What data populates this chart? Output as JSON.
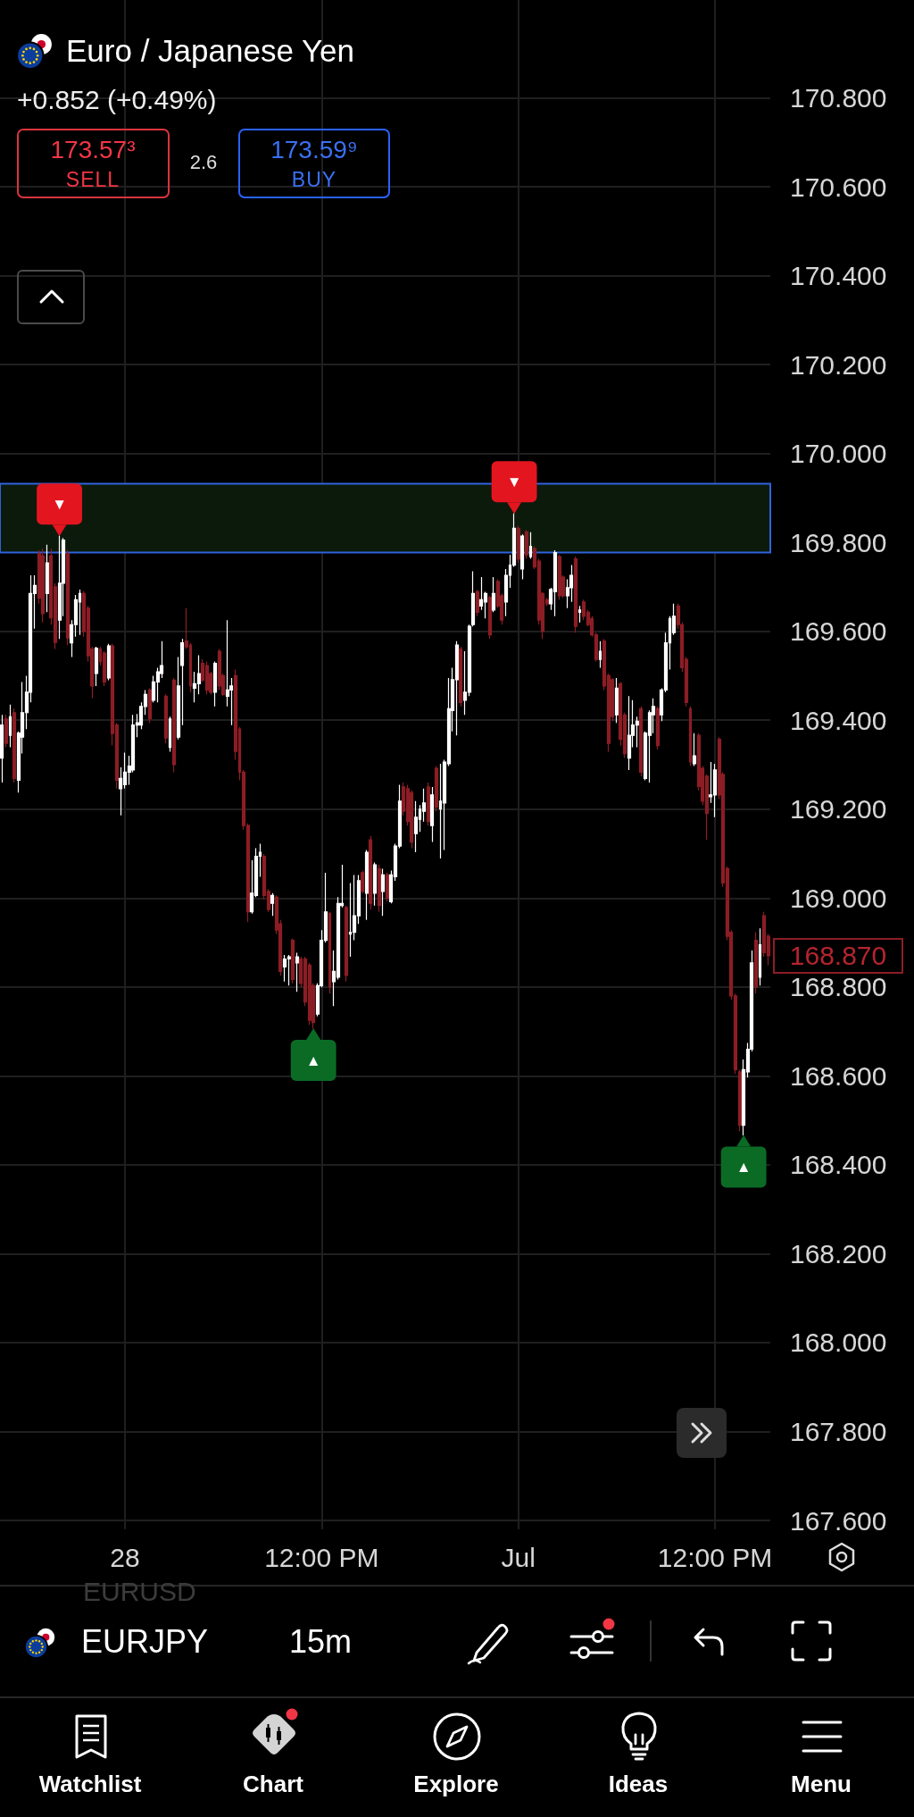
{
  "chart_data": {
    "type": "candlestick",
    "title": "Euro / Japanese Yen",
    "subtitle": "+0.852 (+0.49%)",
    "categories": [
      null,
      null,
      null,
      null,
      null,
      null,
      null,
      null,
      null,
      null,
      null,
      null,
      null,
      null,
      null,
      null,
      null,
      null,
      null,
      null,
      null,
      null,
      null,
      null,
      null,
      null,
      null,
      null,
      null,
      null,
      "28",
      null,
      null,
      null,
      null,
      null,
      null,
      null,
      null,
      null,
      null,
      null,
      null,
      null,
      null,
      null,
      null,
      null,
      null,
      null,
      null,
      null,
      null,
      null,
      null,
      null,
      null,
      null,
      null,
      null,
      null,
      null,
      null,
      null,
      null,
      null,
      null,
      null,
      null,
      null,
      null,
      null,
      null,
      null,
      null,
      null,
      null,
      null,
      "12:00 PM",
      null,
      null,
      null,
      null,
      null,
      null,
      null,
      null,
      null,
      null,
      null,
      null,
      null,
      null,
      null,
      null,
      null,
      null,
      null,
      null,
      null,
      null,
      null,
      null,
      null,
      null,
      null,
      null,
      null,
      null,
      null,
      null,
      null,
      null,
      null,
      null,
      null,
      null,
      null,
      null,
      null,
      null,
      null,
      null,
      null,
      null,
      null,
      "Jul",
      null,
      null,
      null,
      null,
      null,
      null,
      null,
      null,
      null,
      null,
      null,
      null,
      null,
      null,
      null,
      null,
      null,
      null,
      null,
      null,
      null,
      null,
      null,
      null,
      null,
      null,
      null,
      null,
      null,
      null,
      null,
      null,
      null,
      null,
      null,
      null,
      null,
      null,
      null,
      null,
      null,
      null,
      null,
      null,
      null,
      null,
      null,
      "12:00 PM",
      null,
      null,
      null,
      null,
      null,
      null,
      null,
      null,
      null,
      null,
      null,
      null,
      null
    ],
    "ohlc": [
      [
        169.315,
        169.412,
        169.26,
        169.389
      ],
      [
        169.403,
        169.412,
        169.339,
        169.348
      ],
      [
        169.366,
        169.435,
        169.339,
        169.408
      ],
      [
        169.417,
        169.426,
        169.26,
        169.269
      ],
      [
        169.265,
        169.375,
        169.237,
        169.371
      ],
      [
        169.362,
        169.486,
        169.325,
        169.417
      ],
      [
        169.417,
        169.5,
        169.38,
        169.463
      ],
      [
        169.463,
        169.726,
        169.44,
        169.685
      ],
      [
        169.685,
        169.726,
        169.606,
        169.703
      ],
      [
        169.775,
        169.782,
        169.662,
        169.675
      ],
      [
        169.77,
        169.786,
        169.62,
        169.64
      ],
      [
        169.685,
        169.795,
        169.643,
        169.754
      ],
      [
        169.77,
        169.786,
        169.615,
        169.63
      ],
      [
        169.7,
        169.708,
        169.56,
        169.575
      ],
      [
        169.625,
        169.815,
        169.583,
        169.708
      ],
      [
        169.708,
        169.81,
        169.634,
        169.805
      ],
      [
        169.775,
        169.783,
        169.569,
        169.585
      ],
      [
        169.574,
        169.625,
        169.542,
        169.615
      ],
      [
        169.615,
        169.682,
        169.588,
        169.671
      ],
      [
        169.666,
        169.694,
        169.592,
        169.685
      ],
      [
        169.685,
        169.691,
        169.588,
        169.6
      ],
      [
        169.652,
        169.657,
        169.532,
        169.545
      ],
      [
        169.56,
        169.565,
        169.449,
        169.477
      ],
      [
        169.505,
        169.565,
        169.477,
        169.562
      ],
      [
        169.56,
        169.565,
        169.523,
        169.532
      ],
      [
        169.551,
        169.555,
        169.477,
        169.486
      ],
      [
        169.495,
        169.572,
        169.49,
        169.567
      ],
      [
        169.567,
        169.572,
        169.343,
        169.37
      ],
      [
        169.389,
        169.394,
        169.246,
        169.265
      ],
      [
        169.246,
        169.294,
        169.186,
        169.269
      ],
      [
        169.255,
        169.327,
        169.246,
        169.283
      ],
      [
        169.283,
        169.32,
        169.255,
        169.297
      ],
      [
        169.288,
        169.412,
        169.283,
        169.389
      ],
      [
        169.389,
        169.414,
        169.362,
        169.394
      ],
      [
        169.389,
        169.44,
        169.38,
        169.431
      ],
      [
        169.431,
        169.468,
        169.412,
        169.458
      ],
      [
        169.468,
        169.472,
        169.394,
        169.403
      ],
      [
        169.445,
        169.5,
        169.44,
        169.486
      ],
      [
        169.486,
        169.518,
        169.44,
        169.509
      ],
      [
        169.505,
        169.578,
        169.495,
        169.523
      ],
      [
        169.454,
        169.458,
        169.348,
        169.36
      ],
      [
        169.339,
        169.408,
        169.329,
        169.403
      ],
      [
        169.49,
        169.495,
        169.283,
        169.3
      ],
      [
        169.362,
        169.542,
        169.357,
        169.477
      ],
      [
        169.523,
        169.583,
        169.389,
        169.574
      ],
      [
        169.578,
        169.652,
        169.56,
        169.565
      ],
      [
        169.569,
        169.574,
        169.463,
        169.477
      ],
      [
        169.472,
        169.509,
        169.44,
        169.482
      ],
      [
        169.482,
        169.546,
        169.458,
        169.505
      ],
      [
        169.528,
        169.537,
        169.486,
        169.49
      ],
      [
        169.523,
        169.532,
        169.458,
        169.468
      ],
      [
        169.505,
        169.509,
        169.458,
        169.463
      ],
      [
        169.463,
        169.532,
        169.431,
        169.528
      ],
      [
        169.555,
        169.56,
        169.468,
        169.477
      ],
      [
        169.5,
        169.505,
        169.454,
        169.458
      ],
      [
        169.454,
        169.625,
        169.431,
        169.468
      ],
      [
        169.468,
        169.495,
        169.389,
        169.477
      ],
      [
        169.5,
        169.514,
        169.311,
        169.33
      ],
      [
        169.38,
        169.385,
        169.265,
        169.283
      ],
      [
        169.283,
        169.288,
        169.154,
        169.163
      ],
      [
        169.163,
        169.168,
        168.946,
        168.969
      ],
      [
        168.969,
        169.085,
        168.965,
        169.011
      ],
      [
        169.006,
        169.112,
        169.002,
        169.094
      ],
      [
        169.094,
        169.122,
        169.048,
        169.103
      ],
      [
        169.094,
        169.099,
        168.997,
        169.006
      ],
      [
        169.015,
        169.02,
        168.969,
        168.974
      ],
      [
        168.988,
        169.011,
        168.96,
        169.006
      ],
      [
        169.002,
        169.006,
        168.919,
        168.928
      ],
      [
        168.942,
        168.951,
        168.826,
        168.835
      ],
      [
        168.845,
        168.872,
        168.812,
        168.863
      ],
      [
        168.863,
        168.872,
        168.803,
        168.868
      ],
      [
        168.905,
        168.909,
        168.808,
        168.817
      ],
      [
        168.854,
        168.877,
        168.789,
        168.868
      ],
      [
        168.863,
        168.868,
        168.799,
        168.808
      ],
      [
        168.863,
        168.868,
        168.757,
        168.766
      ],
      [
        168.849,
        168.854,
        168.715,
        168.725
      ],
      [
        168.803,
        168.808,
        168.706,
        168.72
      ],
      [
        168.739,
        168.808,
        168.734,
        168.803
      ],
      [
        168.803,
        168.928,
        168.799,
        168.905
      ],
      [
        168.905,
        169.057,
        168.9,
        168.969
      ],
      [
        168.965,
        168.969,
        168.785,
        168.8
      ],
      [
        168.812,
        168.882,
        168.757,
        168.835
      ],
      [
        168.822,
        169.002,
        168.817,
        168.988
      ],
      [
        168.983,
        169.075,
        168.979,
        168.988
      ],
      [
        168.979,
        168.983,
        168.812,
        168.826
      ],
      [
        168.919,
        169.034,
        168.868,
        168.923
      ],
      [
        168.923,
        169.052,
        168.905,
        168.96
      ],
      [
        168.96,
        169.052,
        168.942,
        169.039
      ],
      [
        169.057,
        169.062,
        169.011,
        169.015
      ],
      [
        169.011,
        169.108,
        168.951,
        169.103
      ],
      [
        169.131,
        169.14,
        168.974,
        168.988
      ],
      [
        169.011,
        169.08,
        168.983,
        169.075
      ],
      [
        169.066,
        169.075,
        168.969,
        168.983
      ],
      [
        169.015,
        169.066,
        168.96,
        169.052
      ],
      [
        169.052,
        169.057,
        168.992,
        169.0
      ],
      [
        168.992,
        169.062,
        168.988,
        169.052
      ],
      [
        169.048,
        169.122,
        169.039,
        169.117
      ],
      [
        169.117,
        169.255,
        169.112,
        169.218
      ],
      [
        169.25,
        169.26,
        169.186,
        169.195
      ],
      [
        169.246,
        169.255,
        169.163,
        169.172
      ],
      [
        169.237,
        169.242,
        169.112,
        169.126
      ],
      [
        169.145,
        169.218,
        169.103,
        169.182
      ],
      [
        169.177,
        169.209,
        169.149,
        169.2
      ],
      [
        169.195,
        169.246,
        169.172,
        169.214
      ],
      [
        169.25,
        169.26,
        169.163,
        169.172
      ],
      [
        169.163,
        169.25,
        169.126,
        169.232
      ],
      [
        169.292,
        169.297,
        169.195,
        169.205
      ],
      [
        169.2,
        169.302,
        169.089,
        169.218
      ],
      [
        169.214,
        169.311,
        169.108,
        169.306
      ],
      [
        169.302,
        169.495,
        169.297,
        169.426
      ],
      [
        169.422,
        169.518,
        169.375,
        169.491
      ],
      [
        169.491,
        169.578,
        169.366,
        169.569
      ],
      [
        169.56,
        169.565,
        169.431,
        169.44
      ],
      [
        169.445,
        169.555,
        169.412,
        169.463
      ],
      [
        169.463,
        169.615,
        169.454,
        169.611
      ],
      [
        169.615,
        169.735,
        169.611,
        169.685
      ],
      [
        169.689,
        169.694,
        169.634,
        169.643
      ],
      [
        169.657,
        169.722,
        169.648,
        169.671
      ],
      [
        169.666,
        169.689,
        169.629,
        169.685
      ],
      [
        169.676,
        169.68,
        169.583,
        169.592
      ],
      [
        169.648,
        169.722,
        169.643,
        169.685
      ],
      [
        169.712,
        169.717,
        169.652,
        169.657
      ],
      [
        169.68,
        169.685,
        169.615,
        169.625
      ],
      [
        169.666,
        169.74,
        169.634,
        169.726
      ],
      [
        169.726,
        169.772,
        169.698,
        169.749
      ],
      [
        169.749,
        169.865,
        169.745,
        169.832
      ],
      [
        169.832,
        169.837,
        169.754,
        169.763
      ],
      [
        169.74,
        169.818,
        169.717,
        169.814
      ],
      [
        169.823,
        169.828,
        169.763,
        169.772
      ],
      [
        169.768,
        169.823,
        169.763,
        169.791
      ],
      [
        169.786,
        169.791,
        169.74,
        169.745
      ],
      [
        169.758,
        169.763,
        169.615,
        169.625
      ],
      [
        169.685,
        169.689,
        169.583,
        169.6
      ],
      [
        169.671,
        169.675,
        169.657,
        169.662
      ],
      [
        169.662,
        169.698,
        169.648,
        169.694
      ],
      [
        169.689,
        169.782,
        169.634,
        169.777
      ],
      [
        169.768,
        169.772,
        169.671,
        169.68
      ],
      [
        169.722,
        169.726,
        169.675,
        169.68
      ],
      [
        169.68,
        169.717,
        169.652,
        169.698
      ],
      [
        169.698,
        169.749,
        169.666,
        169.726
      ],
      [
        169.763,
        169.768,
        169.597,
        169.611
      ],
      [
        169.643,
        169.657,
        169.62,
        169.648
      ],
      [
        169.666,
        169.671,
        169.625,
        169.634
      ],
      [
        169.643,
        169.648,
        169.611,
        169.615
      ],
      [
        169.629,
        169.634,
        169.588,
        169.592
      ],
      [
        169.592,
        169.597,
        169.532,
        169.537
      ],
      [
        169.537,
        169.578,
        169.518,
        169.555
      ],
      [
        169.578,
        169.583,
        169.468,
        169.477
      ],
      [
        169.5,
        169.505,
        169.329,
        169.348
      ],
      [
        169.491,
        169.495,
        169.398,
        169.408
      ],
      [
        169.412,
        169.495,
        169.394,
        169.472
      ],
      [
        169.482,
        169.486,
        169.343,
        169.357
      ],
      [
        169.412,
        169.417,
        169.315,
        169.325
      ],
      [
        169.315,
        169.454,
        169.288,
        169.366
      ],
      [
        169.366,
        169.445,
        169.339,
        169.389
      ],
      [
        169.389,
        169.408,
        169.339,
        169.398
      ],
      [
        169.426,
        169.431,
        169.274,
        169.283
      ],
      [
        169.269,
        169.375,
        169.265,
        169.371
      ],
      [
        169.366,
        169.422,
        169.26,
        169.417
      ],
      [
        169.412,
        169.449,
        169.371,
        169.431
      ],
      [
        169.426,
        169.431,
        169.334,
        169.343
      ],
      [
        169.412,
        169.472,
        169.398,
        169.468
      ],
      [
        169.468,
        169.597,
        169.463,
        169.574
      ],
      [
        169.574,
        169.634,
        169.514,
        169.629
      ],
      [
        169.597,
        169.662,
        169.592,
        169.634
      ],
      [
        169.657,
        169.662,
        169.606,
        169.615
      ],
      [
        169.615,
        169.62,
        169.509,
        169.518
      ],
      [
        169.537,
        169.542,
        169.431,
        169.44
      ],
      [
        169.426,
        169.431,
        169.297,
        169.306
      ],
      [
        169.302,
        169.371,
        169.297,
        169.32
      ],
      [
        169.366,
        169.371,
        169.242,
        169.251
      ],
      [
        169.292,
        169.297,
        169.209,
        169.218
      ],
      [
        169.274,
        169.278,
        169.131,
        169.19
      ],
      [
        169.228,
        169.306,
        169.214,
        169.232
      ],
      [
        169.232,
        169.302,
        169.182,
        169.288
      ],
      [
        169.357,
        169.362,
        169.223,
        169.232
      ],
      [
        169.278,
        169.283,
        169.025,
        169.034
      ],
      [
        169.066,
        169.071,
        168.905,
        168.914
      ],
      [
        168.923,
        168.928,
        168.771,
        168.78
      ],
      [
        168.78,
        168.785,
        168.605,
        168.614
      ],
      [
        168.609,
        168.614,
        168.475,
        168.489
      ],
      [
        168.489,
        168.637,
        168.466,
        168.614
      ],
      [
        168.609,
        168.674,
        168.596,
        168.66
      ],
      [
        168.66,
        168.882,
        168.655,
        168.854
      ],
      [
        168.905,
        168.923,
        168.785,
        168.8
      ],
      [
        168.822,
        168.932,
        168.803,
        168.895
      ],
      [
        168.96,
        168.969,
        168.868,
        168.877
      ],
      [
        168.914,
        168.919,
        168.849,
        168.87
      ]
    ],
    "colors": [
      "#ffffff",
      "#8c1d25",
      "#ffffff",
      "#8c1d25",
      "#ffffff",
      "#ffffff",
      "#ffffff",
      "#ffffff",
      "#ffffff",
      "#8c1d25",
      "#8c1d25",
      "#ffffff",
      "#8c1d25",
      "#8c1d25",
      "#ffffff",
      "#ffffff",
      "#8c1d25",
      "#ffffff",
      "#ffffff",
      "#ffffff",
      "#8c1d25",
      "#8c1d25",
      "#8c1d25",
      "#ffffff",
      "#8c1d25",
      "#8c1d25",
      "#ffffff",
      "#8c1d25",
      "#8c1d25",
      "#ffffff",
      "#ffffff",
      "#ffffff",
      "#ffffff",
      "#ffffff",
      "#ffffff",
      "#ffffff",
      "#8c1d25",
      "#ffffff",
      "#ffffff",
      "#ffffff",
      "#8c1d25",
      "#ffffff",
      "#8c1d25",
      "#ffffff",
      "#ffffff",
      "#8c1d25",
      "#8c1d25",
      "#ffffff",
      "#ffffff",
      "#8c1d25",
      "#8c1d25",
      "#8c1d25",
      "#ffffff",
      "#8c1d25",
      "#8c1d25",
      "#ffffff",
      "#ffffff",
      "#8c1d25",
      "#8c1d25",
      "#8c1d25",
      "#8c1d25",
      "#ffffff",
      "#ffffff",
      "#ffffff",
      "#8c1d25",
      "#8c1d25",
      "#ffffff",
      "#8c1d25",
      "#8c1d25",
      "#ffffff",
      "#ffffff",
      "#8c1d25",
      "#ffffff",
      "#8c1d25",
      "#8c1d25",
      "#8c1d25",
      "#8c1d25",
      "#ffffff",
      "#ffffff",
      "#ffffff",
      "#8c1d25",
      "#ffffff",
      "#ffffff",
      "#ffffff",
      "#8c1d25",
      "#ffffff",
      "#ffffff",
      "#ffffff",
      "#8c1d25",
      "#ffffff",
      "#8c1d25",
      "#ffffff",
      "#8c1d25",
      "#ffffff",
      "#8c1d25",
      "#ffffff",
      "#ffffff",
      "#ffffff",
      "#8c1d25",
      "#8c1d25",
      "#8c1d25",
      "#ffffff",
      "#ffffff",
      "#ffffff",
      "#8c1d25",
      "#ffffff",
      "#8c1d25",
      "#ffffff",
      "#ffffff",
      "#ffffff",
      "#ffffff",
      "#ffffff",
      "#8c1d25",
      "#ffffff",
      "#ffffff",
      "#ffffff",
      "#8c1d25",
      "#ffffff",
      "#ffffff",
      "#8c1d25",
      "#ffffff",
      "#8c1d25",
      "#8c1d25",
      "#ffffff",
      "#ffffff",
      "#ffffff",
      "#8c1d25",
      "#ffffff",
      "#8c1d25",
      "#ffffff",
      "#8c1d25",
      "#8c1d25",
      "#8c1d25",
      "#8c1d25",
      "#ffffff",
      "#ffffff",
      "#8c1d25",
      "#8c1d25",
      "#ffffff",
      "#ffffff",
      "#8c1d25",
      "#ffffff",
      "#8c1d25",
      "#8c1d25",
      "#8c1d25",
      "#8c1d25",
      "#ffffff",
      "#8c1d25",
      "#8c1d25",
      "#8c1d25",
      "#ffffff",
      "#8c1d25",
      "#8c1d25",
      "#ffffff",
      "#ffffff",
      "#ffffff",
      "#8c1d25",
      "#ffffff",
      "#ffffff",
      "#ffffff",
      "#8c1d25",
      "#ffffff",
      "#ffffff",
      "#ffffff",
      "#ffffff",
      "#8c1d25",
      "#8c1d25",
      "#8c1d25",
      "#8c1d25",
      "#ffffff",
      "#8c1d25",
      "#8c1d25",
      "#8c1d25",
      "#ffffff",
      "#ffffff",
      "#8c1d25",
      "#8c1d25",
      "#8c1d25",
      "#8c1d25",
      "#8c1d25",
      "#8c1d25",
      "#ffffff",
      "#ffffff",
      "#ffffff",
      "#8c1d25",
      "#ffffff",
      "#8c1d25",
      "#8c1d25"
    ],
    "series": [
      {
        "type": "scatter",
        "color": "#e3151f",
        "values": [
          null,
          null,
          null,
          null,
          null,
          null,
          null,
          null,
          null,
          null,
          null,
          null,
          null,
          null,
          169.827,
          null,
          null,
          null,
          null,
          null,
          null,
          null,
          null,
          null,
          null,
          null,
          null,
          null,
          null,
          null,
          null,
          null,
          null,
          null,
          null,
          null,
          null,
          null,
          null,
          null,
          null,
          null,
          null,
          null,
          null,
          null,
          null,
          null,
          null,
          null,
          null,
          null,
          null,
          null,
          null,
          null,
          null,
          null,
          null,
          null,
          null,
          null,
          null,
          null,
          null,
          null,
          null,
          null,
          null,
          null,
          null,
          null,
          null,
          null,
          null,
          null,
          null,
          null,
          null,
          null,
          null,
          null,
          null,
          null,
          null,
          null,
          null,
          null,
          null,
          null,
          null,
          null,
          null,
          null,
          null,
          null,
          null,
          null,
          null,
          null,
          null,
          null,
          null,
          null,
          null,
          null,
          null,
          null,
          null,
          null,
          null,
          null,
          null,
          null,
          null,
          null,
          null,
          null,
          null,
          null,
          null,
          null,
          null,
          null,
          null,
          169.877,
          null,
          null,
          null,
          null,
          null,
          null,
          null,
          null,
          null,
          null,
          null,
          null,
          null,
          null,
          null,
          null,
          null,
          null,
          null,
          null,
          null,
          null,
          null,
          null,
          null,
          null,
          null,
          null,
          null,
          null,
          null,
          null,
          null,
          null,
          null,
          null,
          null,
          null,
          null,
          null,
          null,
          null,
          null,
          null,
          null,
          null,
          null,
          null,
          null,
          null,
          null,
          null,
          null,
          null,
          null,
          null,
          null,
          null,
          null,
          null,
          null,
          null
        ],
        "value_labels": [
          null,
          null,
          null,
          null,
          null,
          null,
          null,
          null,
          null,
          null,
          null,
          null,
          null,
          null,
          "▼",
          null,
          null,
          null,
          null,
          null,
          null,
          null,
          null,
          null,
          null,
          null,
          null,
          null,
          null,
          null,
          null,
          null,
          null,
          null,
          null,
          null,
          null,
          null,
          null,
          null,
          null,
          null,
          null,
          null,
          null,
          null,
          null,
          null,
          null,
          null,
          null,
          null,
          null,
          null,
          null,
          null,
          null,
          null,
          null,
          null,
          null,
          null,
          null,
          null,
          null,
          null,
          null,
          null,
          null,
          null,
          null,
          null,
          null,
          null,
          null,
          null,
          null,
          null,
          null,
          null,
          null,
          null,
          null,
          null,
          null,
          null,
          null,
          null,
          null,
          null,
          null,
          null,
          null,
          null,
          null,
          null,
          null,
          null,
          null,
          null,
          null,
          null,
          null,
          null,
          null,
          null,
          null,
          null,
          null,
          null,
          null,
          null,
          null,
          null,
          null,
          null,
          null,
          null,
          null,
          null,
          null,
          null,
          null,
          null,
          null,
          "▼",
          null,
          null,
          null,
          null,
          null,
          null,
          null,
          null,
          null,
          null,
          null,
          null,
          null,
          null,
          null,
          null,
          null,
          null,
          null,
          null,
          null,
          null,
          null,
          null,
          null,
          null,
          null,
          null,
          null,
          null,
          null,
          null,
          null,
          null,
          null,
          null,
          null,
          null,
          null,
          null,
          null,
          null,
          null,
          null,
          null,
          null,
          null,
          null,
          null,
          null,
          null,
          null,
          null,
          null,
          null,
          null,
          null,
          null,
          null,
          null,
          null,
          null
        ]
      },
      {
        "type": "scatter",
        "color": "#0b6b25",
        "values": [
          null,
          null,
          null,
          null,
          null,
          null,
          null,
          null,
          null,
          null,
          null,
          null,
          null,
          null,
          null,
          null,
          null,
          null,
          null,
          null,
          null,
          null,
          null,
          null,
          null,
          null,
          null,
          null,
          null,
          null,
          null,
          null,
          null,
          null,
          null,
          null,
          null,
          null,
          null,
          null,
          null,
          null,
          null,
          null,
          null,
          null,
          null,
          null,
          null,
          null,
          null,
          null,
          null,
          null,
          null,
          null,
          null,
          null,
          null,
          null,
          null,
          null,
          null,
          null,
          null,
          null,
          null,
          null,
          null,
          null,
          null,
          null,
          null,
          null,
          null,
          null,
          168.694,
          null,
          null,
          null,
          null,
          null,
          null,
          null,
          null,
          null,
          null,
          null,
          null,
          null,
          null,
          null,
          null,
          null,
          null,
          null,
          null,
          null,
          null,
          null,
          null,
          null,
          null,
          null,
          null,
          null,
          null,
          null,
          null,
          null,
          null,
          null,
          null,
          null,
          null,
          null,
          null,
          null,
          null,
          null,
          null,
          null,
          null,
          null,
          null,
          null,
          null,
          null,
          null,
          null,
          null,
          null,
          null,
          null,
          null,
          null,
          null,
          null,
          null,
          null,
          null,
          null,
          null,
          null,
          null,
          null,
          null,
          null,
          null,
          null,
          null,
          null,
          null,
          null,
          null,
          null,
          null,
          null,
          null,
          null,
          null,
          null,
          null,
          null,
          null,
          null,
          null,
          null,
          null,
          null,
          null,
          null,
          null,
          null,
          null,
          null,
          null,
          null,
          null,
          null,
          null,
          168.454,
          null,
          null,
          null,
          null,
          null,
          null
        ],
        "value_labels": [
          null,
          null,
          null,
          null,
          null,
          null,
          null,
          null,
          null,
          null,
          null,
          null,
          null,
          null,
          null,
          null,
          null,
          null,
          null,
          null,
          null,
          null,
          null,
          null,
          null,
          null,
          null,
          null,
          null,
          null,
          null,
          null,
          null,
          null,
          null,
          null,
          null,
          null,
          null,
          null,
          null,
          null,
          null,
          null,
          null,
          null,
          null,
          null,
          null,
          null,
          null,
          null,
          null,
          null,
          null,
          null,
          null,
          null,
          null,
          null,
          null,
          null,
          null,
          null,
          null,
          null,
          null,
          null,
          null,
          null,
          null,
          null,
          null,
          null,
          null,
          null,
          "▲",
          null,
          null,
          null,
          null,
          null,
          null,
          null,
          null,
          null,
          null,
          null,
          null,
          null,
          null,
          null,
          null,
          null,
          null,
          null,
          null,
          null,
          null,
          null,
          null,
          null,
          null,
          null,
          null,
          null,
          null,
          null,
          null,
          null,
          null,
          null,
          null,
          null,
          null,
          null,
          null,
          null,
          null,
          null,
          null,
          null,
          null,
          null,
          null,
          null,
          null,
          null,
          null,
          null,
          null,
          null,
          null,
          null,
          null,
          null,
          null,
          null,
          null,
          null,
          null,
          null,
          null,
          null,
          null,
          null,
          null,
          null,
          null,
          null,
          null,
          null,
          null,
          null,
          null,
          null,
          null,
          null,
          null,
          null,
          null,
          null,
          null,
          null,
          null,
          null,
          null,
          null,
          null,
          null,
          null,
          null,
          null,
          null,
          null,
          null,
          null,
          null,
          null,
          null,
          null,
          "▲",
          null,
          null,
          null,
          null,
          null,
          null
        ]
      }
    ],
    "marker": "triangle",
    "bands": [
      {
        "axis": "y",
        "from": 169.777,
        "to": 169.932,
        "color": "#0c1a0c"
      }
    ],
    "ylim": [
      167.58,
      171.02
    ],
    "yticks": [
      {
        "value": 167.6,
        "label": "167.600"
      },
      {
        "value": 167.8,
        "label": "167.800"
      },
      {
        "value": 168,
        "label": "168.000"
      },
      {
        "value": 168.2,
        "label": "168.200"
      },
      {
        "value": 168.4,
        "label": "168.400"
      },
      {
        "value": 168.6,
        "label": "168.600"
      },
      {
        "value": 168.8,
        "label": "168.800"
      },
      {
        "value": 169,
        "label": "169.000"
      },
      {
        "value": 169.2,
        "label": "169.200"
      },
      {
        "value": 169.4,
        "label": "169.400"
      },
      {
        "value": 169.6,
        "label": "169.600"
      },
      {
        "value": 169.8,
        "label": "169.800"
      },
      {
        "value": 170,
        "label": "170.000"
      },
      {
        "value": 170.2,
        "label": "170.200"
      },
      {
        "value": 170.4,
        "label": "170.400"
      },
      {
        "value": 170.6,
        "label": "170.600"
      },
      {
        "value": 170.8,
        "label": "170.800"
      }
    ],
    "grid": true,
    "annotations": [
      "173.57³",
      "SELL",
      "2.6",
      "173.59⁹",
      "BUY",
      "168.870",
      "EURUSD",
      "EURJPY",
      "15m",
      "Watchlist",
      "Chart",
      "Explore",
      "Ideas",
      "Menu"
    ]
  }
}
